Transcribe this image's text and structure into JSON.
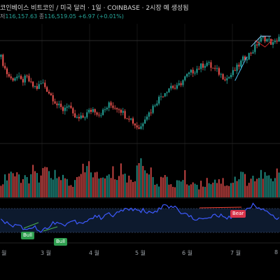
{
  "header": {
    "title": "코인베이스 비트코인 / 미국 달러 · 1일 · COINBASE · 2시장 예 생성됨",
    "low_label": "저",
    "low_value": "116,157.63",
    "close_label": "종",
    "close_value": "116,519.05",
    "change": "+6.97 (+0.01%)"
  },
  "axis": {
    "months": [
      "월",
      "3 월",
      "4 월",
      "5 월",
      "6 월",
      "7 월",
      "8"
    ]
  },
  "rsi": {
    "bull_labels": [
      "Bull",
      "Bull"
    ],
    "bear_label": "Bear"
  },
  "colors": {
    "up": "#26a69a",
    "down": "#ef5350",
    "rsi_line": "#3d5afe",
    "bull": "#2e9e4f",
    "bear": "#d8334a",
    "divergence_bull": "#4caf50",
    "divergence_bear": "#f44336"
  },
  "chart_data": {
    "type": "candlestick",
    "price_path": [
      0.76,
      0.62,
      0.55,
      0.58,
      0.53,
      0.57,
      0.49,
      0.47,
      0.52,
      0.45,
      0.38,
      0.3,
      0.26,
      0.32,
      0.2,
      0.17,
      0.19,
      0.24,
      0.27,
      0.22,
      0.25,
      0.31,
      0.29,
      0.28,
      0.21,
      0.19,
      0.12,
      0.08,
      0.2,
      0.24,
      0.33,
      0.39,
      0.44,
      0.49,
      0.46,
      0.52,
      0.58,
      0.62,
      0.65,
      0.68,
      0.71,
      0.66,
      0.63,
      0.58,
      0.56,
      0.61,
      0.67,
      0.74,
      0.78,
      0.83,
      0.91,
      0.95,
      0.92,
      0.88,
      0.96
    ],
    "rsi_path": [
      0.55,
      0.42,
      0.34,
      0.4,
      0.3,
      0.26,
      0.36,
      0.24,
      0.2,
      0.33,
      0.47,
      0.4,
      0.37,
      0.45,
      0.5,
      0.42,
      0.48,
      0.55,
      0.62,
      0.58,
      0.7,
      0.64,
      0.68,
      0.78,
      0.85,
      0.82,
      0.76,
      0.8,
      0.74,
      0.7,
      0.82,
      0.92,
      0.86,
      0.9,
      0.76,
      0.72,
      0.6,
      0.56,
      0.5,
      0.62,
      0.58,
      0.66,
      0.63,
      0.54,
      0.6,
      0.7,
      0.76,
      0.86,
      0.94,
      0.9,
      0.8,
      0.72,
      0.62,
      0.56
    ],
    "volume_path": [
      0.3,
      0.45,
      0.6,
      0.4,
      0.35,
      0.42,
      0.55,
      0.38,
      0.47,
      0.62,
      0.52,
      0.35,
      0.4,
      0.33,
      0.28,
      0.44,
      0.58,
      0.7,
      0.46,
      0.4,
      0.36,
      0.52,
      0.48,
      0.66,
      0.38,
      0.34,
      0.6,
      0.95,
      0.55,
      0.42,
      0.36,
      0.4,
      0.3,
      0.28,
      0.35,
      0.44,
      0.32,
      0.3,
      0.26,
      0.34,
      0.38,
      0.4,
      0.36,
      0.3,
      0.34,
      0.42,
      0.48,
      0.36,
      0.44,
      0.38,
      0.52,
      0.4,
      0.34,
      0.58
    ]
  }
}
